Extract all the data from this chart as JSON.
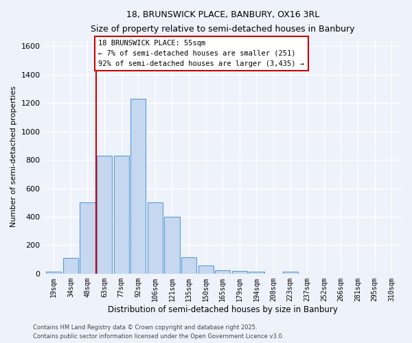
{
  "title1": "18, BRUNSWICK PLACE, BANBURY, OX16 3RL",
  "title2": "Size of property relative to semi-detached houses in Banbury",
  "xlabel": "Distribution of semi-detached houses by size in Banbury",
  "ylabel": "Number of semi-detached properties",
  "bin_labels": [
    "19sqm",
    "34sqm",
    "48sqm",
    "63sqm",
    "77sqm",
    "92sqm",
    "106sqm",
    "121sqm",
    "135sqm",
    "150sqm",
    "165sqm",
    "179sqm",
    "194sqm",
    "208sqm",
    "223sqm",
    "237sqm",
    "252sqm",
    "266sqm",
    "281sqm",
    "295sqm",
    "310sqm"
  ],
  "bar_heights": [
    15,
    110,
    500,
    830,
    830,
    1230,
    500,
    400,
    115,
    55,
    25,
    20,
    15,
    0,
    15,
    0,
    0,
    0,
    0,
    0,
    0
  ],
  "bar_color": "#c5d8f0",
  "bar_edge_color": "#5b9bd5",
  "vline_color": "#cc0000",
  "annotation_title": "18 BRUNSWICK PLACE: 55sqm",
  "annotation_line1": "← 7% of semi-detached houses are smaller (251)",
  "annotation_line2": "92% of semi-detached houses are larger (3,435) →",
  "annotation_box_color": "#ffffff",
  "annotation_box_edge": "#cc0000",
  "ylim": [
    0,
    1650
  ],
  "yticks": [
    0,
    200,
    400,
    600,
    800,
    1000,
    1200,
    1400,
    1600
  ],
  "footer1": "Contains HM Land Registry data © Crown copyright and database right 2025.",
  "footer2": "Contains public sector information licensed under the Open Government Licence v3.0.",
  "bg_color": "#eef2fb",
  "grid_color": "#ffffff"
}
